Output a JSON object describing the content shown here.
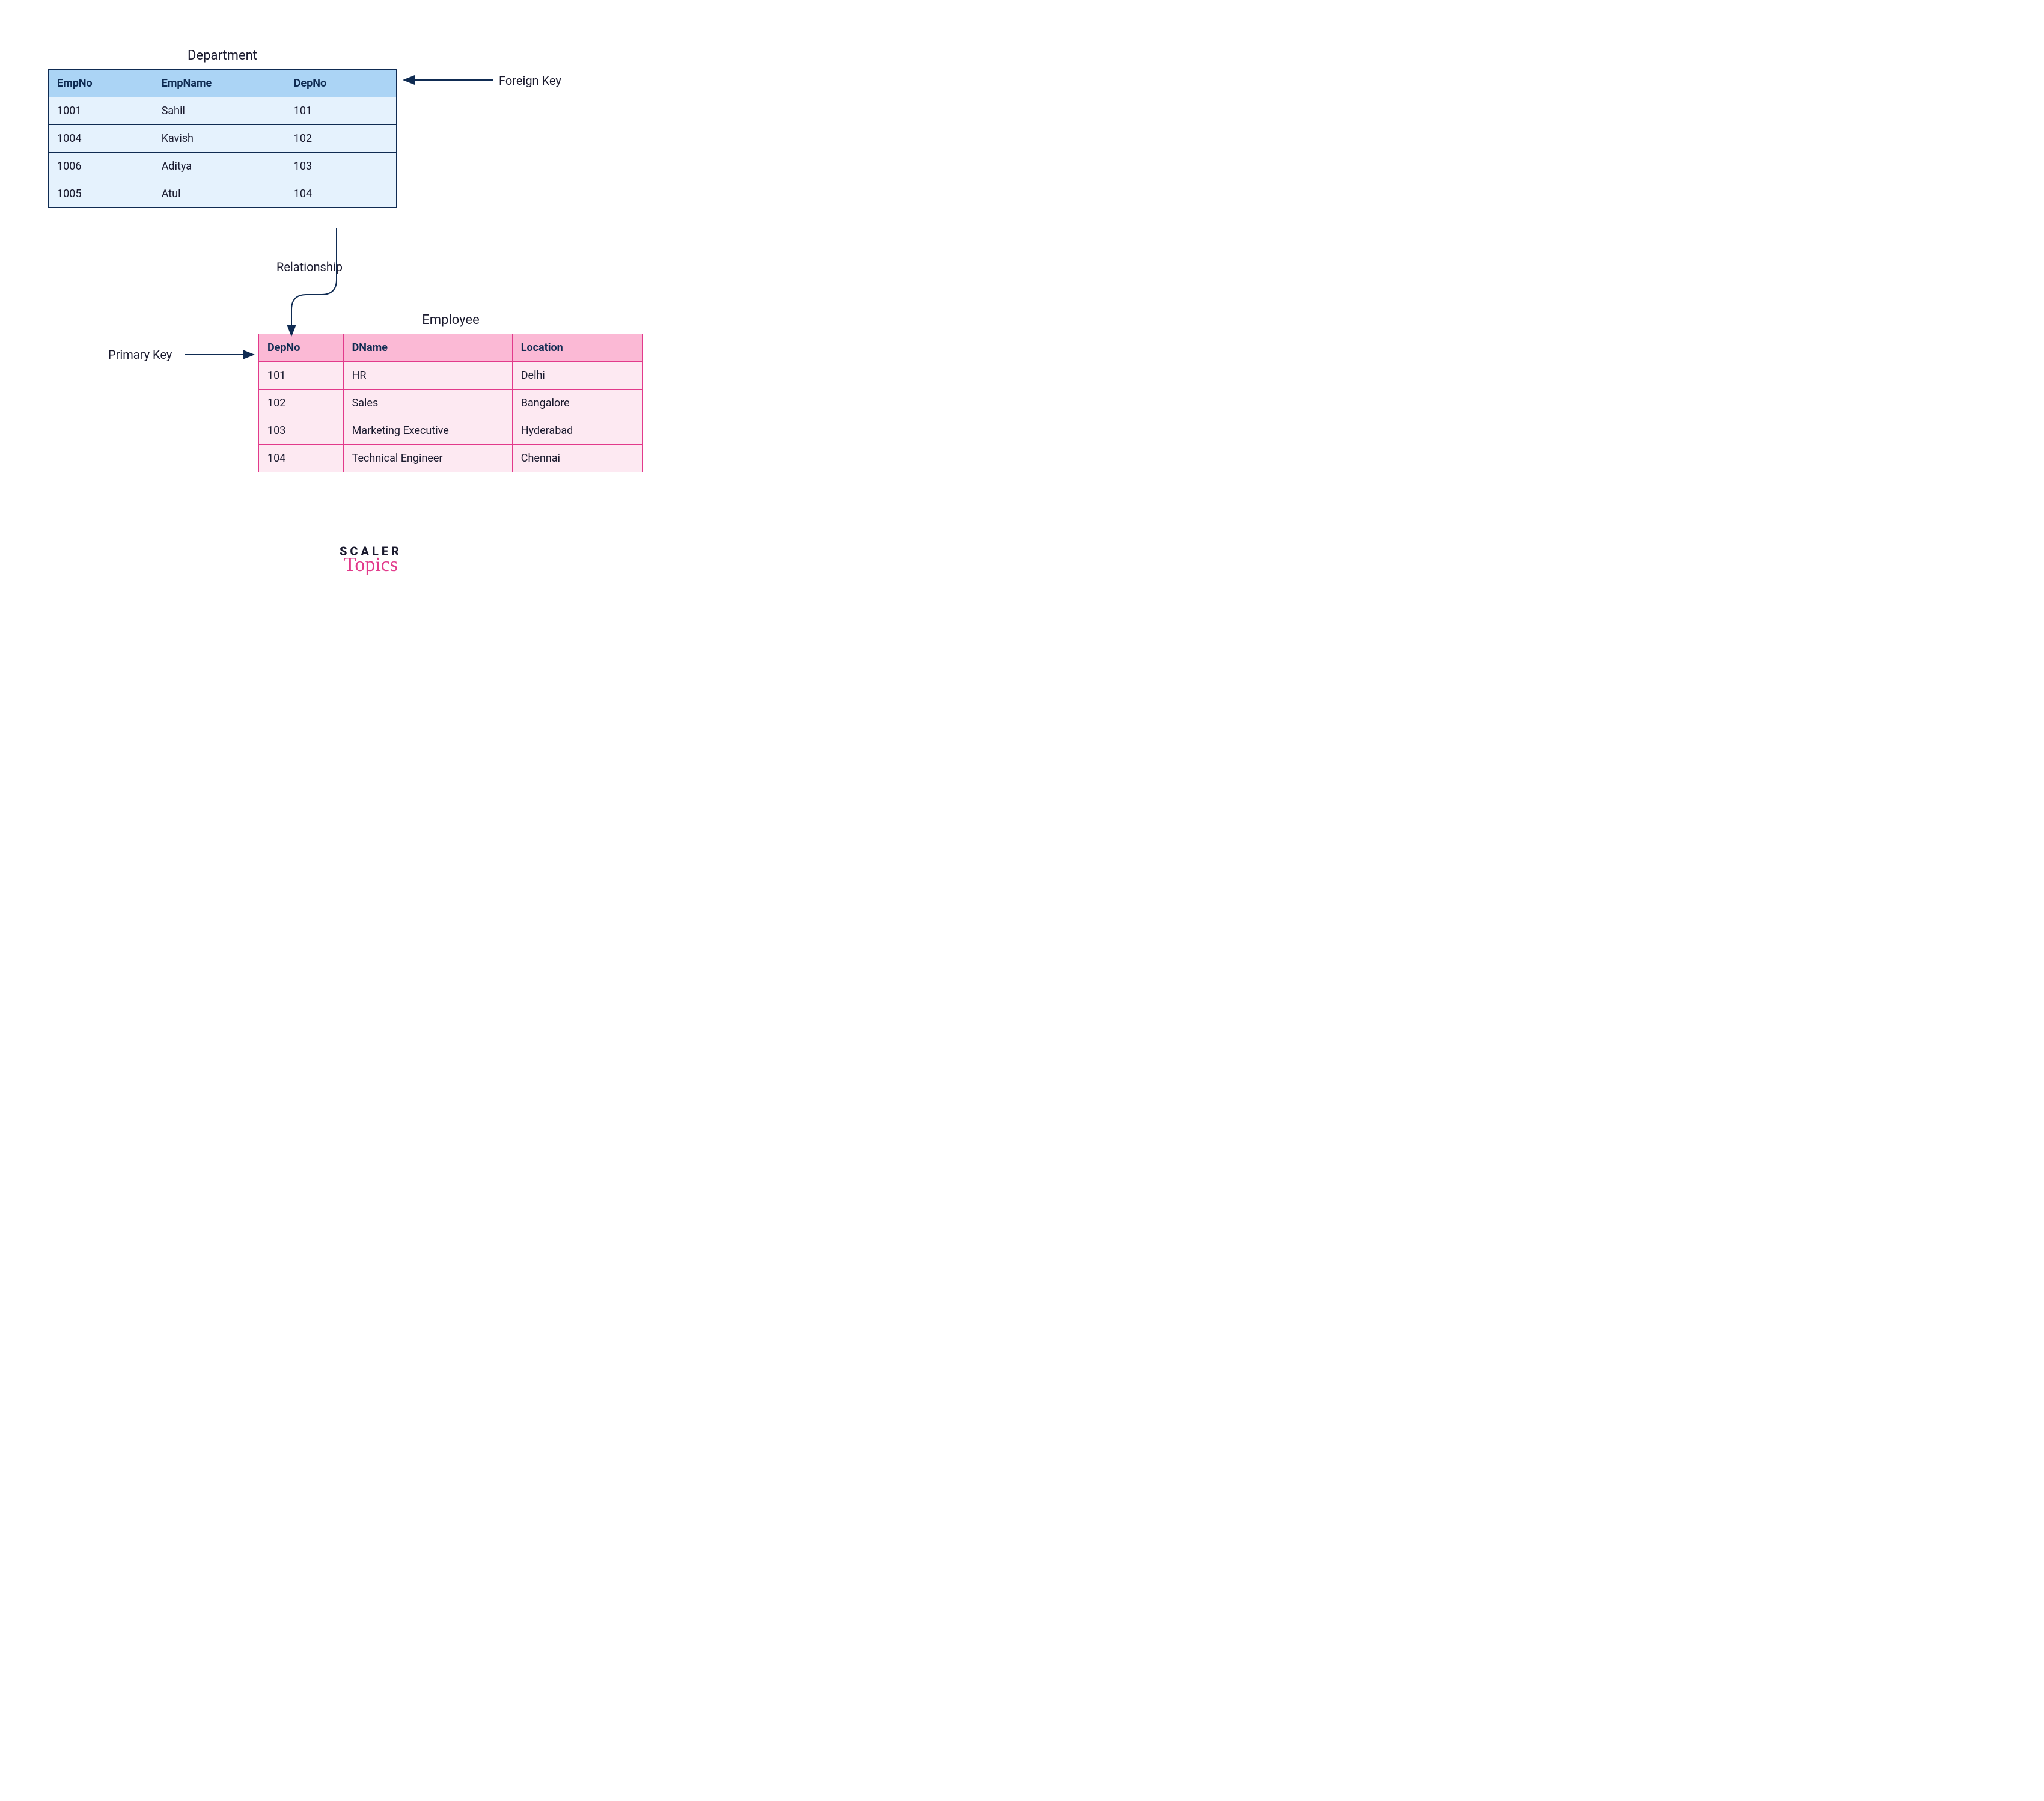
{
  "department": {
    "title": "Department",
    "columns": [
      "EmpNo",
      "EmpName",
      "DepNo"
    ],
    "rows": [
      [
        "1001",
        "Sahil",
        "101"
      ],
      [
        "1004",
        "Kavish",
        "102"
      ],
      [
        "1006",
        "Aditya",
        "103"
      ],
      [
        "1005",
        "Atul",
        "104"
      ]
    ],
    "col_widths_pct": [
      30,
      38,
      32
    ],
    "header_bg": "#abd4f5",
    "row_bg": "#e5f2fd",
    "border_color": "#0f2b52",
    "header_text_color": "#0f2b52",
    "cell_text_color": "#1a1a2e"
  },
  "employee": {
    "title": "Employee",
    "columns": [
      "DepNo",
      "DName",
      "Location"
    ],
    "rows": [
      [
        "101",
        "HR",
        "Delhi"
      ],
      [
        "102",
        "Sales",
        "Bangalore"
      ],
      [
        "103",
        "Marketing Executive",
        "Hyderabad"
      ],
      [
        "104",
        "Technical Engineer",
        "Chennai"
      ]
    ],
    "col_widths_pct": [
      22,
      44,
      34
    ],
    "header_bg": "#fbb9d5",
    "row_bg": "#fde9f2",
    "border_color": "#e23a8b",
    "header_text_color": "#0f2b52",
    "cell_text_color": "#1a1a2e"
  },
  "annotations": {
    "foreign_key": "Foreign Key",
    "primary_key": "Primary Key",
    "relationship": "Relationship"
  },
  "arrows": {
    "stroke": "#0f2b52",
    "stroke_width": 2
  },
  "logo": {
    "top": "SCALER",
    "bottom": "Topics",
    "top_color": "#1a1a2e",
    "bottom_color": "#e23a8b"
  },
  "body_font_size": 18,
  "title_font_size": 22,
  "annotation_font_size": 20
}
